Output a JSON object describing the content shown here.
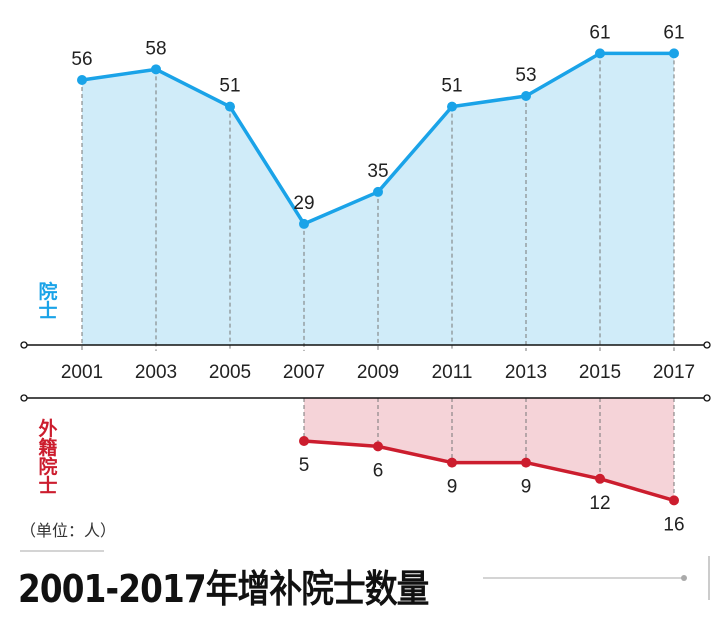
{
  "chart_data": {
    "type": "line",
    "title": "2001-2017年增补院士数量",
    "unit": "（单位：人）",
    "categories": [
      "2001",
      "2003",
      "2005",
      "2007",
      "2009",
      "2011",
      "2013",
      "2015",
      "2017"
    ],
    "series": [
      {
        "name": "院士",
        "values": [
          56,
          58,
          51,
          29,
          35,
          51,
          53,
          61,
          61
        ],
        "color": "#1aa3e8",
        "fill": "#d0ecf9"
      },
      {
        "name": "外籍院士",
        "values": [
          null,
          null,
          null,
          5,
          6,
          9,
          9,
          12,
          16
        ],
        "color": "#cc1d2e",
        "fill": "#f5d3d8"
      }
    ],
    "data_labels": true,
    "grid": false
  }
}
